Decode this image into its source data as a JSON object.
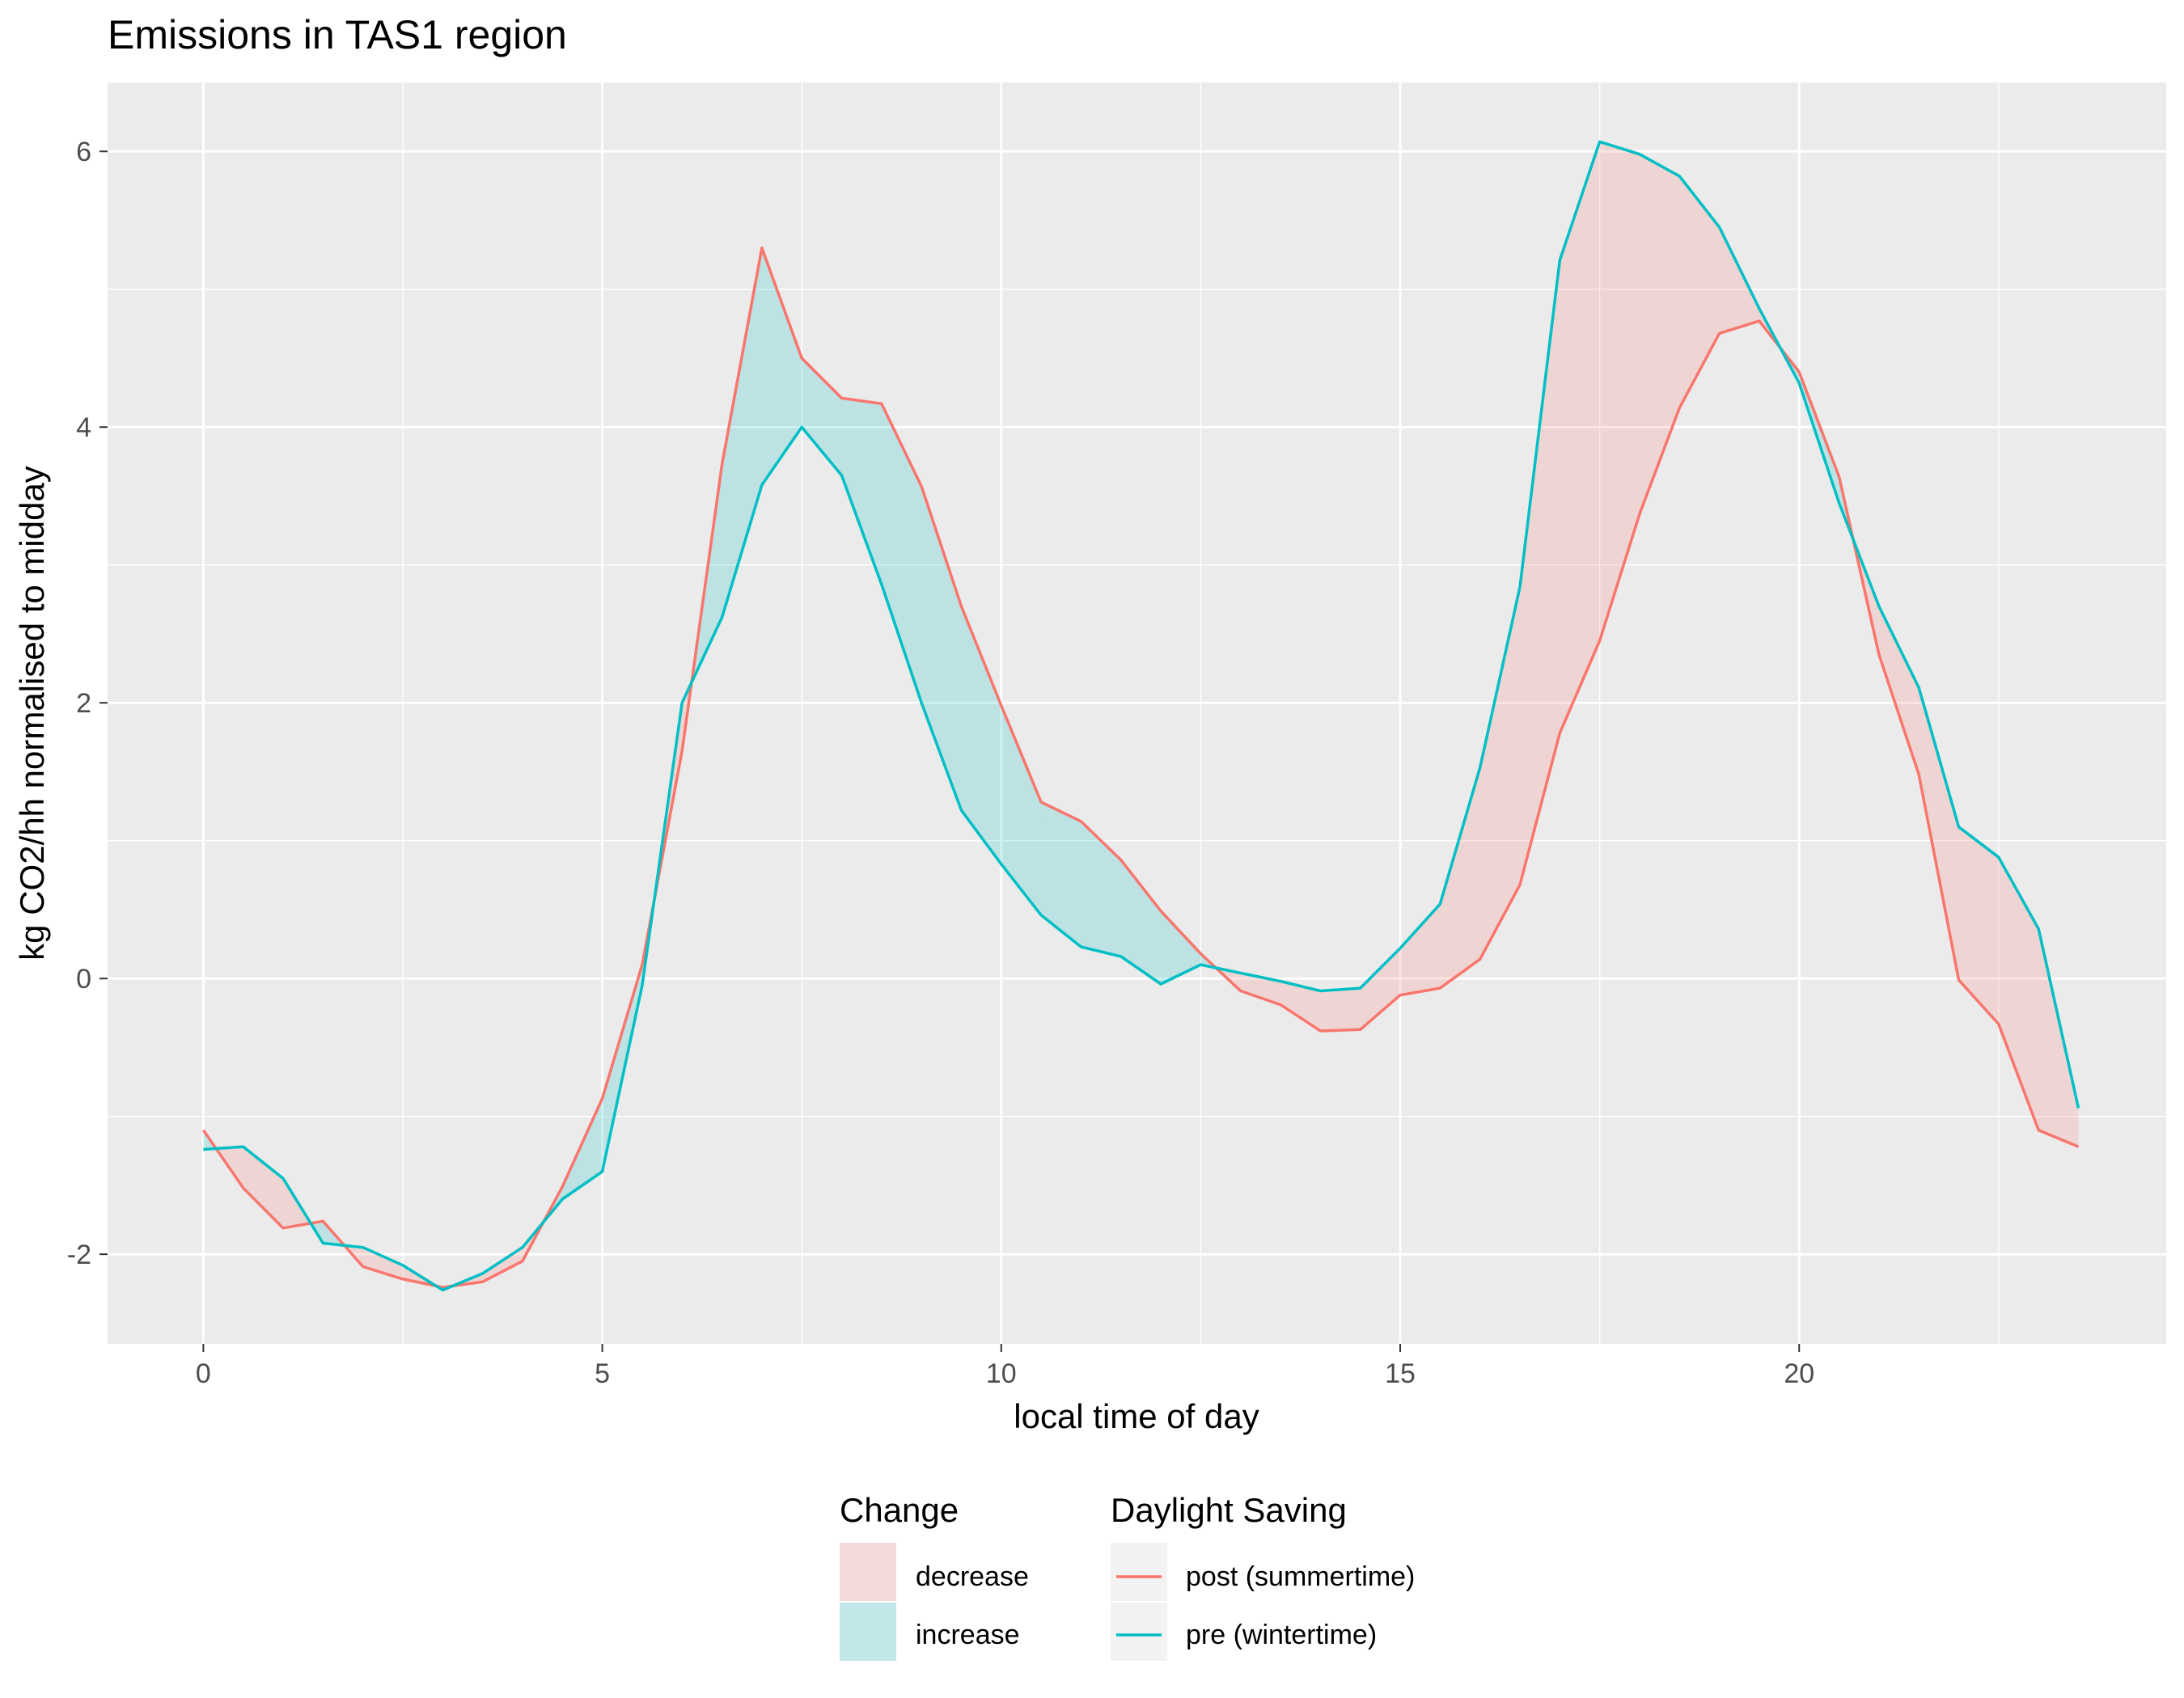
{
  "chart_data": {
    "type": "line",
    "title": "Emissions in TAS1 region",
    "xlabel": "local time of day",
    "ylabel": "kg CO2/hh normalised to midday",
    "xlim": [
      -1.2,
      24.6
    ],
    "ylim": [
      -2.65,
      6.5
    ],
    "x_ticks": [
      0,
      5,
      10,
      15,
      20
    ],
    "y_ticks": [
      -2,
      0,
      2,
      4,
      6
    ],
    "x_tick_labels": [
      "0",
      "5",
      "10",
      "15",
      "20"
    ],
    "y_tick_labels": [
      "-2",
      "0",
      "2",
      "4",
      "6"
    ],
    "x": [
      0,
      0.5,
      1,
      1.5,
      2,
      2.5,
      3,
      3.5,
      4,
      4.5,
      5,
      5.5,
      6,
      6.5,
      7,
      7.5,
      8,
      8.5,
      9,
      9.5,
      10,
      10.5,
      11,
      11.5,
      12,
      12.5,
      13,
      13.5,
      14,
      14.5,
      15,
      15.5,
      16,
      16.5,
      17,
      17.5,
      18,
      18.5,
      19,
      19.5,
      20,
      20.5,
      21,
      21.5,
      22,
      22.5,
      23,
      23.5
    ],
    "series": [
      {
        "name": "post (summertime)",
        "color": "#F8766D",
        "values": [
          -1.1,
          -1.52,
          -1.81,
          -1.76,
          -2.09,
          -2.18,
          -2.24,
          -2.2,
          -2.05,
          -1.51,
          -0.87,
          0.1,
          1.65,
          3.73,
          5.3,
          4.5,
          4.21,
          4.17,
          3.57,
          2.7,
          1.98,
          1.28,
          1.14,
          0.86,
          0.49,
          0.18,
          -0.09,
          -0.19,
          -0.38,
          -0.37,
          -0.12,
          -0.07,
          0.14,
          0.68,
          1.78,
          2.45,
          3.37,
          4.14,
          4.68,
          4.77,
          4.4,
          3.64,
          2.35,
          1.48,
          -0.01,
          -0.33,
          -1.1,
          -1.22
        ]
      },
      {
        "name": "pre (wintertime)",
        "color": "#00BFC4",
        "values": [
          -1.24,
          -1.22,
          -1.45,
          -1.92,
          -1.95,
          -2.08,
          -2.26,
          -2.14,
          -1.95,
          -1.6,
          -1.4,
          -0.05,
          2.0,
          2.62,
          3.58,
          4.0,
          3.65,
          2.86,
          2.0,
          1.22,
          0.83,
          0.46,
          0.23,
          0.16,
          -0.04,
          0.1,
          0.04,
          -0.02,
          -0.09,
          -0.07,
          0.22,
          0.54,
          1.53,
          2.84,
          5.21,
          6.07,
          5.98,
          5.82,
          5.45,
          4.86,
          4.32,
          3.45,
          2.7,
          2.11,
          1.1,
          0.88,
          0.36,
          -0.94
        ]
      }
    ],
    "ribbons": [
      {
        "name": "decrease",
        "color": "#F8766D",
        "alpha": 0.2
      },
      {
        "name": "increase",
        "color": "#00BFC4",
        "alpha": 0.2
      }
    ],
    "grid": true,
    "legend_placement": "bottom",
    "legends": [
      {
        "title": "Change",
        "items": [
          {
            "label": "decrease",
            "color": "#F8766D"
          },
          {
            "label": "increase",
            "color": "#00BFC4"
          }
        ]
      },
      {
        "title": "Daylight Saving",
        "items": [
          {
            "label": "post (summertime)",
            "color": "#F8766D"
          },
          {
            "label": "pre (wintertime)",
            "color": "#00BFC4"
          }
        ]
      }
    ]
  }
}
